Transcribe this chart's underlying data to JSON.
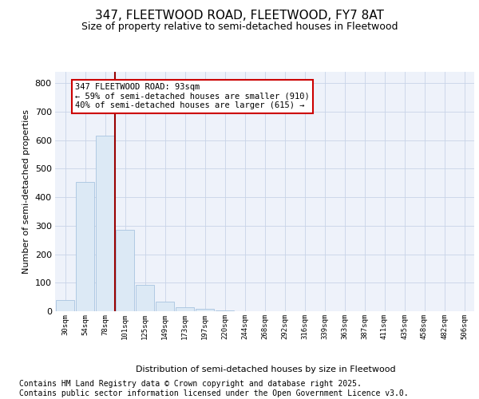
{
  "title_line1": "347, FLEETWOOD ROAD, FLEETWOOD, FY7 8AT",
  "title_line2": "Size of property relative to semi-detached houses in Fleetwood",
  "xlabel": "Distribution of semi-detached houses by size in Fleetwood",
  "ylabel": "Number of semi-detached properties",
  "categories": [
    "30sqm",
    "54sqm",
    "78sqm",
    "101sqm",
    "125sqm",
    "149sqm",
    "173sqm",
    "197sqm",
    "220sqm",
    "244sqm",
    "268sqm",
    "292sqm",
    "316sqm",
    "339sqm",
    "363sqm",
    "387sqm",
    "411sqm",
    "435sqm",
    "458sqm",
    "482sqm",
    "506sqm"
  ],
  "values": [
    40,
    455,
    615,
    285,
    93,
    33,
    15,
    8,
    3,
    1,
    0,
    0,
    0,
    0,
    0,
    0,
    0,
    0,
    0,
    0,
    0
  ],
  "bar_color": "#dce9f5",
  "bar_edge_color": "#a8c4e0",
  "grid_color": "#c8d4e8",
  "background_color": "#eef2fa",
  "vline_color": "#990000",
  "annotation_text": "347 FLEETWOOD ROAD: 93sqm\n← 59% of semi-detached houses are smaller (910)\n40% of semi-detached houses are larger (615) →",
  "annotation_box_color": "#ffffff",
  "annotation_box_edge": "#cc0000",
  "ylim": [
    0,
    840
  ],
  "yticks": [
    0,
    100,
    200,
    300,
    400,
    500,
    600,
    700,
    800
  ],
  "footer_text": "Contains HM Land Registry data © Crown copyright and database right 2025.\nContains public sector information licensed under the Open Government Licence v3.0.",
  "title_fontsize": 11,
  "subtitle_fontsize": 9,
  "footer_fontsize": 7
}
